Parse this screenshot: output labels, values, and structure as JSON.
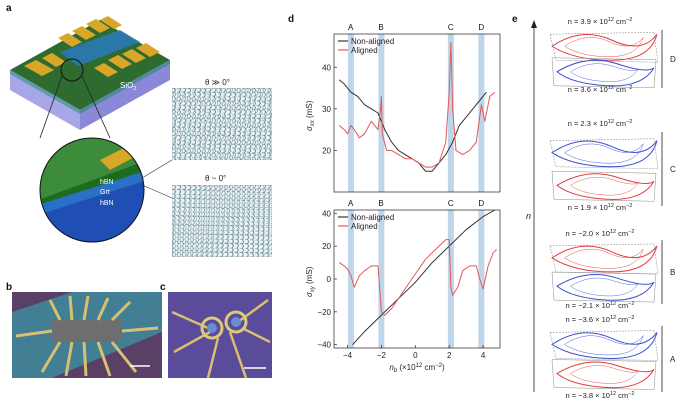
{
  "panels": {
    "a": "a",
    "b": "b",
    "c": "c",
    "d": "d",
    "e": "e"
  },
  "panel_a": {
    "substrate_label": "SiO",
    "substrate_sub": "2",
    "layer_top": "hBN",
    "layer_mid": "Grt",
    "layer_bot": "hBN",
    "theta_top": "θ ≫ 0°",
    "theta_bot": "θ ~ 0°"
  },
  "chart_data": [
    {
      "type": "line",
      "title": "",
      "xlabel": "n",
      "xlabel_sub": "b",
      "xlabel_units": "(×10",
      "xlabel_exp": "12",
      "xlabel_tail": " cm",
      "xlabel_tail_exp": "−2",
      "xlabel_close": ")",
      "ylabel": "σ",
      "ylabel_sub": "xx",
      "ylabel_units": " (mS)",
      "xlim": [
        -4.8,
        5
      ],
      "ylim": [
        10,
        48
      ],
      "yticks": [
        20,
        30,
        40
      ],
      "ytick_labels": [
        "20",
        "30",
        "40"
      ],
      "legend": [
        "Non-aligned",
        "Aligned"
      ],
      "legend_position": "top-left",
      "colors": {
        "non_aligned": "#333333",
        "aligned": "#e05a5a",
        "band": "#8ab4d8"
      },
      "bands": [
        {
          "label": "A",
          "x": -3.8
        },
        {
          "label": "B",
          "x": -2.0
        },
        {
          "label": "C",
          "x": 2.1
        },
        {
          "label": "D",
          "x": 3.9
        }
      ],
      "series": [
        {
          "name": "Non-aligned",
          "x": [
            -4.5,
            -4.2,
            -3.8,
            -3.4,
            -3.0,
            -2.6,
            -2.2,
            -1.8,
            -1.4,
            -1.0,
            -0.6,
            -0.2,
            0.2,
            0.6,
            1.0,
            1.4,
            1.8,
            2.2,
            2.6,
            3.0,
            3.4,
            3.8,
            4.2
          ],
          "y": [
            37,
            36,
            34,
            33,
            31,
            30,
            29,
            25,
            22,
            20,
            19,
            18,
            17,
            15,
            15,
            17,
            19,
            22,
            26,
            28,
            30,
            32,
            34
          ]
        },
        {
          "name": "Aligned",
          "x": [
            -4.5,
            -4.2,
            -4.0,
            -3.8,
            -3.6,
            -3.3,
            -3.0,
            -2.6,
            -2.2,
            -2.05,
            -2.0,
            -1.95,
            -1.7,
            -1.4,
            -1.0,
            -0.6,
            -0.2,
            0.2,
            0.6,
            1.0,
            1.4,
            1.8,
            2.0,
            2.1,
            2.2,
            2.4,
            2.8,
            3.2,
            3.6,
            3.8,
            3.9,
            4.1,
            4.4,
            4.7
          ],
          "y": [
            26,
            25,
            24,
            26,
            25,
            23,
            24,
            27,
            25,
            30,
            33,
            24,
            20,
            20,
            19,
            18,
            18,
            17,
            16,
            16,
            17,
            22,
            34,
            46,
            30,
            20,
            19,
            20,
            22,
            28,
            31,
            27,
            33,
            34
          ]
        }
      ]
    },
    {
      "type": "line",
      "title": "",
      "xlabel": "n",
      "xlabel_sub": "b",
      "xlabel_units": "(×10",
      "xlabel_exp": "12",
      "xlabel_tail": " cm",
      "xlabel_tail_exp": "−2",
      "xlabel_close": ")",
      "ylabel": "σ",
      "ylabel_sub": "xy",
      "ylabel_units": " (mS)",
      "xlim": [
        -4.8,
        5
      ],
      "ylim": [
        -42,
        42
      ],
      "xticks": [
        -4,
        -2,
        0,
        2,
        4
      ],
      "xtick_labels": [
        "−4",
        "−2",
        "0",
        "2",
        "4"
      ],
      "yticks": [
        -40,
        -20,
        0,
        20,
        40
      ],
      "ytick_labels": [
        "−40",
        "−20",
        "0",
        "20",
        "40"
      ],
      "legend": [
        "Non-aligned",
        "Aligned"
      ],
      "legend_position": "top-left",
      "bands": [
        {
          "label": "A",
          "x": -3.8
        },
        {
          "label": "B",
          "x": -2.0
        },
        {
          "label": "C",
          "x": 2.1
        },
        {
          "label": "D",
          "x": 3.9
        }
      ],
      "series": [
        {
          "name": "Non-aligned",
          "x": [
            -3.7,
            -3.0,
            -2.0,
            -1.0,
            0.0,
            1.0,
            2.0,
            3.0,
            4.0,
            4.7
          ],
          "y": [
            -40,
            -32,
            -22,
            -12,
            -2,
            10,
            20,
            30,
            38,
            42
          ]
        },
        {
          "name": "Aligned",
          "x": [
            -4.5,
            -4.2,
            -4.0,
            -3.8,
            -3.6,
            -3.3,
            -3.0,
            -2.6,
            -2.2,
            -2.0,
            -1.8,
            -1.4,
            -1.0,
            -0.6,
            -0.2,
            0.2,
            0.6,
            1.0,
            1.4,
            1.8,
            2.0,
            2.1,
            2.2,
            2.5,
            2.8,
            3.2,
            3.6,
            3.8,
            4.0,
            4.3,
            4.6,
            4.8
          ],
          "y": [
            10,
            8,
            6,
            2,
            -5,
            2,
            5,
            8,
            8,
            -20,
            -22,
            -18,
            -12,
            -6,
            0,
            6,
            12,
            16,
            20,
            24,
            24,
            -5,
            -10,
            -5,
            5,
            8,
            8,
            0,
            -6,
            8,
            16,
            18
          ]
        }
      ]
    }
  ],
  "panel_e": {
    "axis_label": "n",
    "labels": [
      "n = 3.9 × 10",
      "n = 3.6 × 10",
      "n = 2.3 × 10",
      "n = 1.9 × 10",
      "n = −2.0 × 10",
      "n = −2.1 × 10",
      "n = −3.6 × 10",
      "n = −3.8 × 10"
    ],
    "exp": "12",
    "unit": " cm",
    "unit_exp": "−2",
    "groups": [
      "D",
      "C",
      "B",
      "A"
    ],
    "colors": {
      "red": "#e03c3c",
      "blue": "#3a4fc9"
    }
  }
}
